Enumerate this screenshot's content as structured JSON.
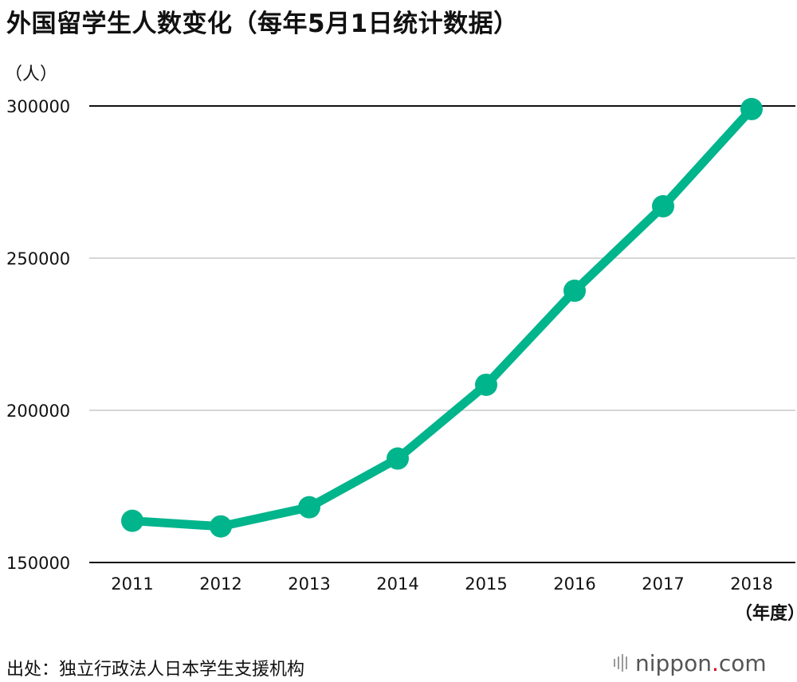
{
  "title": "外国留学生人数变化（每年5月1日统计数据）",
  "y_unit": "（人）",
  "x_unit": "（年度）",
  "source": "出处：独立行政法人日本学生支援机构",
  "logo": {
    "name": "nippon",
    "dot": ".",
    "suffix": "com"
  },
  "colors": {
    "line": "#00b48c",
    "grid": "#c8c8c8",
    "axis": "#111111"
  },
  "chart_data": {
    "type": "line",
    "title": "外国留学生人数变化（每年5月1日统计数据）",
    "xlabel": "（年度）",
    "ylabel": "（人）",
    "x": [
      "2011",
      "2012",
      "2013",
      "2014",
      "2015",
      "2016",
      "2017",
      "2018"
    ],
    "series": [
      {
        "values": [
          163697,
          161848,
          168145,
          184155,
          208379,
          239287,
          267042,
          298980
        ]
      }
    ],
    "ylim": [
      150000,
      300000
    ],
    "yticks": [
      150000,
      200000,
      250000,
      300000
    ],
    "grid": true,
    "legend": "none"
  }
}
